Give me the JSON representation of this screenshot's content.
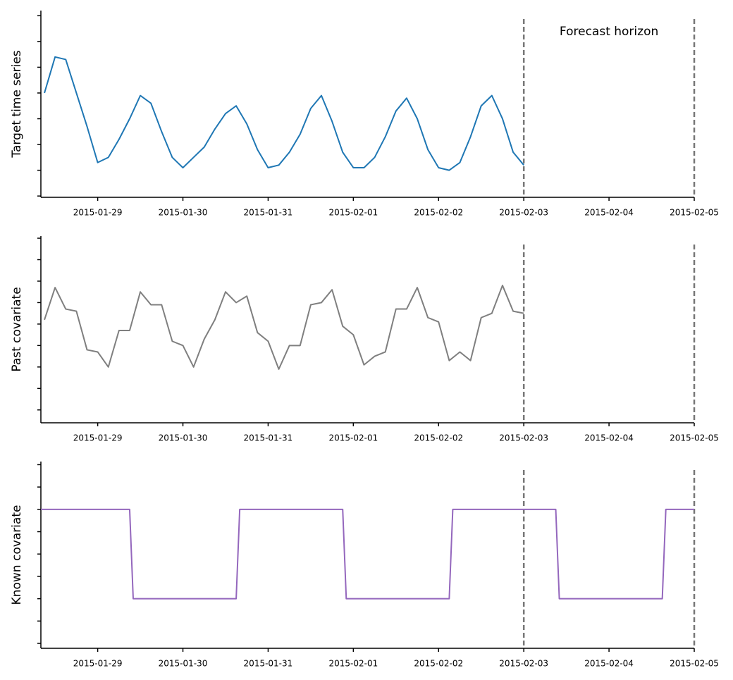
{
  "chart_data": [
    {
      "type": "line",
      "ylabel": "Target time series",
      "color": "#1f77b4",
      "x": [
        "2015-01-28T09:00",
        "2015-01-28T12:00",
        "2015-01-28T15:00",
        "2015-01-28T18:00",
        "2015-01-28T21:00",
        "2015-01-29T00:00",
        "2015-01-29T03:00",
        "2015-01-29T06:00",
        "2015-01-29T09:00",
        "2015-01-29T12:00",
        "2015-01-29T15:00",
        "2015-01-29T18:00",
        "2015-01-29T21:00",
        "2015-01-30T00:00",
        "2015-01-30T03:00",
        "2015-01-30T06:00",
        "2015-01-30T09:00",
        "2015-01-30T12:00",
        "2015-01-30T15:00",
        "2015-01-30T18:00",
        "2015-01-30T21:00",
        "2015-01-31T00:00",
        "2015-01-31T03:00",
        "2015-01-31T06:00",
        "2015-01-31T09:00",
        "2015-01-31T12:00",
        "2015-01-31T15:00",
        "2015-01-31T18:00",
        "2015-01-31T21:00",
        "2015-02-01T00:00",
        "2015-02-01T03:00",
        "2015-02-01T06:00",
        "2015-02-01T09:00",
        "2015-02-01T12:00",
        "2015-02-01T15:00",
        "2015-02-01T18:00",
        "2015-02-01T21:00",
        "2015-02-02T00:00",
        "2015-02-02T03:00",
        "2015-02-02T06:00",
        "2015-02-02T09:00",
        "2015-02-02T12:00",
        "2015-02-02T15:00",
        "2015-02-02T18:00",
        "2015-02-02T21:00",
        "2015-02-03T00:00"
      ],
      "values": [
        4.0,
        5.4,
        5.3,
        4.0,
        2.7,
        1.3,
        1.5,
        2.2,
        3.0,
        3.9,
        3.6,
        2.5,
        1.5,
        1.1,
        1.5,
        1.9,
        2.6,
        3.2,
        3.5,
        2.8,
        1.8,
        1.1,
        1.2,
        1.7,
        2.4,
        3.4,
        3.9,
        2.9,
        1.7,
        1.1,
        1.1,
        1.5,
        2.3,
        3.3,
        3.8,
        3.0,
        1.8,
        1.1,
        1.0,
        1.3,
        2.3,
        3.5,
        3.9,
        3.0,
        1.7,
        1.2
      ],
      "xlim": [
        "2015-01-28T08:00",
        "2015-02-05T00:00"
      ],
      "xticks": [
        "2015-01-29",
        "2015-01-30",
        "2015-01-31",
        "2015-02-01",
        "2015-02-02",
        "2015-02-03",
        "2015-02-04",
        "2015-02-05"
      ],
      "ylim": [
        -0.05,
        7.2
      ],
      "yticks": [
        0,
        1,
        2,
        3,
        4,
        5,
        6,
        7
      ],
      "vlines": [
        "2015-02-03",
        "2015-02-05"
      ],
      "annotation": "Forecast horizon"
    },
    {
      "type": "line",
      "ylabel": "Past covariate",
      "color": "#7f7f7f",
      "x": [
        "2015-01-28T09:00",
        "2015-01-28T12:00",
        "2015-01-28T15:00",
        "2015-01-28T18:00",
        "2015-01-28T21:00",
        "2015-01-29T00:00",
        "2015-01-29T03:00",
        "2015-01-29T06:00",
        "2015-01-29T09:00",
        "2015-01-29T12:00",
        "2015-01-29T15:00",
        "2015-01-29T18:00",
        "2015-01-29T21:00",
        "2015-01-30T00:00",
        "2015-01-30T03:00",
        "2015-01-30T06:00",
        "2015-01-30T09:00",
        "2015-01-30T12:00",
        "2015-01-30T15:00",
        "2015-01-30T18:00",
        "2015-01-30T21:00",
        "2015-01-31T00:00",
        "2015-01-31T03:00",
        "2015-01-31T06:00",
        "2015-01-31T09:00",
        "2015-01-31T12:00",
        "2015-01-31T15:00",
        "2015-01-31T18:00",
        "2015-01-31T21:00",
        "2015-02-01T00:00",
        "2015-02-01T03:00",
        "2015-02-01T06:00",
        "2015-02-01T09:00",
        "2015-02-01T12:00",
        "2015-02-01T15:00",
        "2015-02-01T18:00",
        "2015-02-01T21:00",
        "2015-02-02T00:00",
        "2015-02-02T03:00",
        "2015-02-02T06:00",
        "2015-02-02T09:00",
        "2015-02-02T12:00",
        "2015-02-02T15:00",
        "2015-02-02T18:00",
        "2015-02-02T21:00",
        "2015-02-03T00:00"
      ],
      "values": [
        4.2,
        5.7,
        4.7,
        4.6,
        2.8,
        2.7,
        2.0,
        3.7,
        3.7,
        5.5,
        4.9,
        4.9,
        3.2,
        3.0,
        2.0,
        3.3,
        4.2,
        5.5,
        5.0,
        5.3,
        3.6,
        3.2,
        1.9,
        3.0,
        3.0,
        4.9,
        5.0,
        5.6,
        3.9,
        3.5,
        2.1,
        2.5,
        2.7,
        4.7,
        4.7,
        5.7,
        4.3,
        4.1,
        2.3,
        2.7,
        2.3,
        4.3,
        4.5,
        5.8,
        4.6,
        4.5
      ],
      "xlim": [
        "2015-01-28T08:00",
        "2015-02-05T00:00"
      ],
      "xticks": [
        "2015-01-29",
        "2015-01-30",
        "2015-01-31",
        "2015-02-01",
        "2015-02-02",
        "2015-02-03",
        "2015-02-04",
        "2015-02-05"
      ],
      "ylim": [
        -0.6,
        8.1
      ],
      "yticks": [
        0,
        1,
        2,
        3,
        4,
        5,
        6,
        7,
        8
      ],
      "vlines": [
        "2015-02-03",
        "2015-02-05"
      ]
    },
    {
      "type": "line",
      "ylabel": "Known covariate",
      "color": "#9467bd",
      "x": [
        "2015-01-28T08:00",
        "2015-01-29T09:00",
        "2015-01-29T10:00",
        "2015-01-30T15:00",
        "2015-01-30T16:00",
        "2015-01-31T21:00",
        "2015-01-31T22:00",
        "2015-02-02T03:00",
        "2015-02-02T04:00",
        "2015-02-03T09:00",
        "2015-02-03T10:00",
        "2015-02-04T15:00",
        "2015-02-04T16:00",
        "2015-02-05T00:00"
      ],
      "values": [
        6,
        6,
        2,
        2,
        6,
        6,
        2,
        2,
        6,
        6,
        2,
        2,
        6,
        6
      ],
      "xlim": [
        "2015-01-28T08:00",
        "2015-02-05T00:00"
      ],
      "xticks": [
        "2015-01-29",
        "2015-01-30",
        "2015-01-31",
        "2015-02-01",
        "2015-02-02",
        "2015-02-03",
        "2015-02-04",
        "2015-02-05"
      ],
      "ylim": [
        -0.22,
        8.14
      ],
      "yticks": [
        0,
        1,
        2,
        3,
        4,
        5,
        6,
        7,
        8
      ],
      "vlines": [
        "2015-02-03",
        "2015-02-05"
      ]
    }
  ]
}
